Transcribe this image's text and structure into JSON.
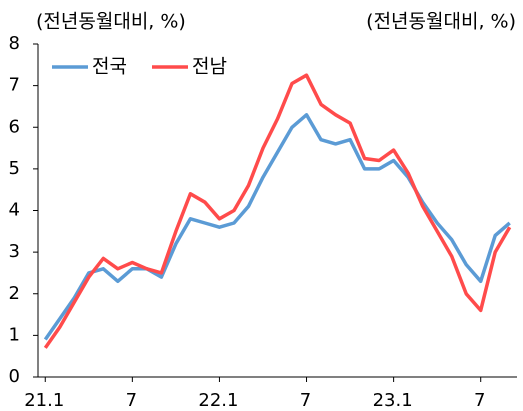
{
  "chart_data": {
    "type": "line",
    "axis_label_left": "(전년동월대비, %)",
    "axis_label_right": "(전년동월대비, %)",
    "categories": [
      "21.1",
      null,
      null,
      null,
      null,
      null,
      "7",
      null,
      null,
      null,
      null,
      null,
      "22.1",
      null,
      null,
      null,
      null,
      null,
      "7",
      null,
      null,
      null,
      null,
      null,
      "23.1",
      null,
      null,
      null,
      null,
      null,
      "7",
      null,
      null
    ],
    "series": [
      {
        "name": "전국",
        "color": "#5b9bd5",
        "values": [
          0.9,
          1.4,
          1.9,
          2.5,
          2.6,
          2.3,
          2.6,
          2.6,
          2.4,
          3.2,
          3.8,
          3.7,
          3.6,
          3.7,
          4.1,
          4.8,
          5.4,
          6.0,
          6.3,
          5.7,
          5.6,
          5.7,
          5.0,
          5.0,
          5.2,
          4.8,
          4.2,
          3.7,
          3.3,
          2.7,
          2.3,
          3.4,
          3.7
        ]
      },
      {
        "name": "전남",
        "color": "#ff4b4b",
        "values": [
          0.7,
          1.2,
          1.8,
          2.4,
          2.85,
          2.6,
          2.75,
          2.6,
          2.5,
          3.5,
          4.4,
          4.2,
          3.8,
          4.0,
          4.6,
          5.5,
          6.2,
          7.05,
          7.25,
          6.55,
          6.3,
          6.1,
          5.25,
          5.2,
          5.45,
          4.9,
          4.1,
          3.5,
          2.9,
          2.0,
          1.6,
          3.0,
          3.6
        ]
      }
    ],
    "ylim": [
      0,
      8
    ],
    "yticks": [
      0,
      1,
      2,
      3,
      4,
      5,
      6,
      7,
      8
    ],
    "grid": false,
    "legend": "top-left"
  }
}
